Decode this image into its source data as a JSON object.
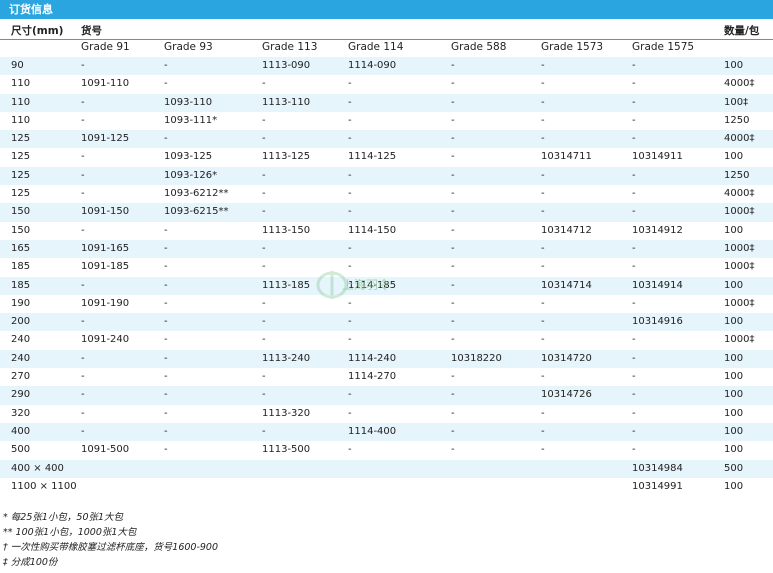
{
  "title": "订货信息",
  "header": {
    "size_label": "尺寸(mm)",
    "part_label": "货号",
    "qty_label": "数量/包",
    "grades": [
      "Grade 91",
      "Grade 93",
      "Grade 113",
      "Grade 114",
      "Grade 588",
      "Grade 1573",
      "Grade 1575"
    ]
  },
  "rows": [
    [
      "90",
      "-",
      "-",
      "1113-090",
      "1114-090",
      "-",
      "-",
      "-",
      "100"
    ],
    [
      "110",
      "1091-110",
      "-",
      "-",
      "-",
      "-",
      "-",
      "-",
      "4000‡"
    ],
    [
      "110",
      "-",
      "1093-110",
      "1113-110",
      "-",
      "-",
      "-",
      "-",
      "100‡"
    ],
    [
      "110",
      "-",
      "1093-111*",
      "-",
      "-",
      "-",
      "-",
      "-",
      "1250"
    ],
    [
      "125",
      "1091-125",
      "-",
      "-",
      "-",
      "-",
      "-",
      "-",
      "4000‡"
    ],
    [
      "125",
      "-",
      "1093-125",
      "1113-125",
      "1114-125",
      "-",
      "10314711",
      "10314911",
      "100"
    ],
    [
      "125",
      "-",
      "1093-126*",
      "-",
      "-",
      "-",
      "-",
      "-",
      "1250"
    ],
    [
      "125",
      "-",
      "1093-6212**",
      "-",
      "-",
      "-",
      "-",
      "-",
      "4000‡"
    ],
    [
      "150",
      "1091-150",
      "1093-6215**",
      "-",
      "-",
      "-",
      "-",
      "-",
      "1000‡"
    ],
    [
      "150",
      "-",
      "-",
      "1113-150",
      "1114-150",
      "-",
      "10314712",
      "10314912",
      "100"
    ],
    [
      "165",
      "1091-165",
      "-",
      "-",
      "-",
      "-",
      "-",
      "-",
      "1000‡"
    ],
    [
      "185",
      "1091-185",
      "-",
      "-",
      "-",
      "-",
      "-",
      "-",
      "1000‡"
    ],
    [
      "185",
      "-",
      "-",
      "1113-185",
      "1114-185",
      "-",
      "10314714",
      "10314914",
      "100"
    ],
    [
      "190",
      "1091-190",
      "-",
      "-",
      "-",
      "-",
      "-",
      "-",
      "1000‡"
    ],
    [
      "200",
      "-",
      "-",
      "-",
      "-",
      "-",
      "-",
      "10314916",
      "100"
    ],
    [
      "240",
      "1091-240",
      "-",
      "-",
      "-",
      "-",
      "-",
      "-",
      "1000‡"
    ],
    [
      "240",
      "-",
      "-",
      "1113-240",
      "1114-240",
      "10318220",
      "10314720",
      "-",
      "100"
    ],
    [
      "270",
      "-",
      "-",
      "-",
      "1114-270",
      "-",
      "-",
      "-",
      "100"
    ],
    [
      "290",
      "-",
      "-",
      "-",
      "-",
      "-",
      "10314726",
      "-",
      "100"
    ],
    [
      "320",
      "-",
      "-",
      "1113-320",
      "-",
      "-",
      "-",
      "-",
      "100"
    ],
    [
      "400",
      "-",
      "-",
      "-",
      "1114-400",
      "-",
      "-",
      "-",
      "100"
    ],
    [
      "500",
      "1091-500",
      "-",
      "1113-500",
      "-",
      "-",
      "-",
      "-",
      "100"
    ],
    [
      "400 × 400",
      "",
      "",
      "",
      "",
      "",
      "",
      "10314984",
      "500"
    ],
    [
      "1100 × 1100",
      "",
      "",
      "",
      "",
      "",
      "",
      "10314991",
      "100"
    ]
  ],
  "footnotes": [
    "* 每25张1小包，50张1大包",
    "** 100张1小包，1000张1大包",
    "† 一次性购买带橡胶塞过滤杯底座，货号1600-900",
    "‡ 分成100份"
  ],
  "watermark": "上海羽令"
}
